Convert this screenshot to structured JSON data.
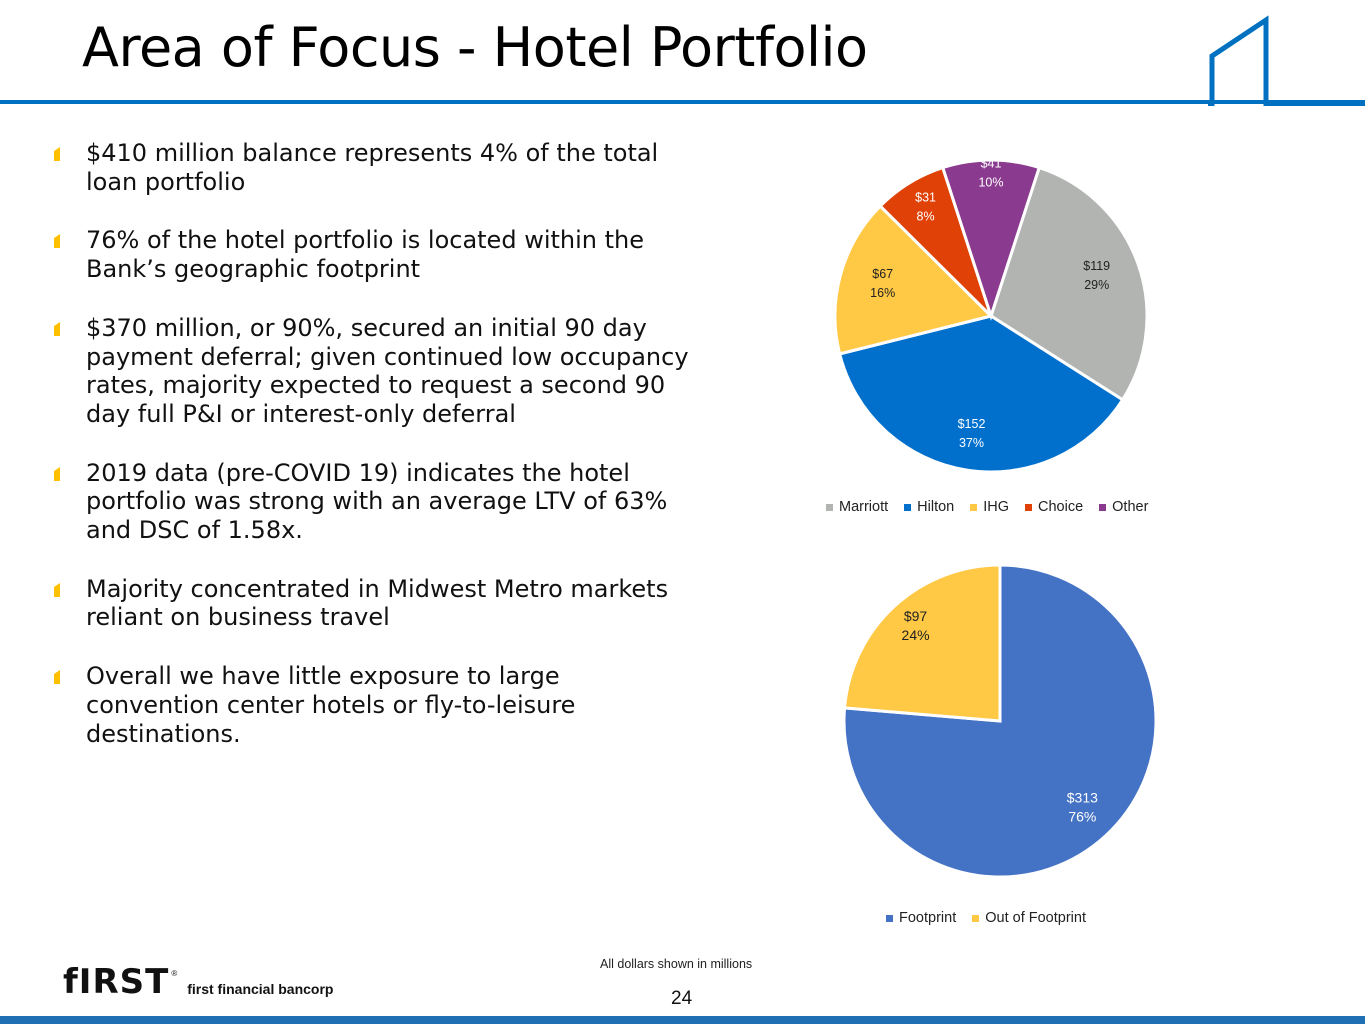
{
  "slide": {
    "title": "Area of Focus - Hotel Portfolio",
    "page_number": "24",
    "footnote": "All dollars shown in millions"
  },
  "logo": {
    "text": "first financial bancorp"
  },
  "colors": {
    "accent_blue": "#0070C0",
    "bullet_gold": "#FFC000",
    "footer_blue": "#1F6FB5"
  },
  "bullets": [
    "$410 million balance represents 4% of the total loan portfolio",
    "76% of the hotel portfolio is located within the Bank’s geographic footprint",
    "$370 million, or 90%, secured an initial 90 day payment deferral; given continued low occupancy rates, majority expected to request a second 90 day full P&I or interest-only deferral",
    "2019 data (pre-COVID 19) indicates the hotel portfolio was strong with an average LTV of 63% and DSC of 1.58x.",
    "Majority concentrated in Midwest Metro markets reliant on business travel",
    "Overall we have little exposure to large convention center hotels or fly-to-leisure destinations."
  ],
  "chart_data": [
    {
      "type": "pie",
      "title": "",
      "start_angle_deg": 18,
      "slices": [
        {
          "label": "Marriott",
          "value": 119,
          "value_label": "$119",
          "percent_label": "29%",
          "color": "#B2B4B2"
        },
        {
          "label": "Hilton",
          "value": 152,
          "value_label": "$152",
          "percent_label": "37%",
          "color": "#0070CC"
        },
        {
          "label": "IHG",
          "value": 67,
          "value_label": "$67",
          "percent_label": "16%",
          "color": "#FFC845"
        },
        {
          "label": "Choice",
          "value": 31,
          "value_label": "$31",
          "percent_label": "8%",
          "color": "#E04106"
        },
        {
          "label": "Other",
          "value": 41,
          "value_label": "$41",
          "percent_label": "10%",
          "color": "#8A3A8F"
        }
      ],
      "legend": [
        "Marriott",
        "Hilton",
        "IHG",
        "Choice",
        "Other"
      ],
      "legend_position": "bottom"
    },
    {
      "type": "pie",
      "title": "",
      "start_angle_deg": 0,
      "slices": [
        {
          "label": "Footprint",
          "value": 313,
          "value_label": "$313",
          "percent_label": "76%",
          "color": "#4472C4"
        },
        {
          "label": "Out of Footprint",
          "value": 97,
          "value_label": "$97",
          "percent_label": "24%",
          "color": "#FFC845"
        }
      ],
      "legend": [
        "Footprint",
        "Out of Footprint"
      ],
      "legend_position": "bottom"
    }
  ]
}
